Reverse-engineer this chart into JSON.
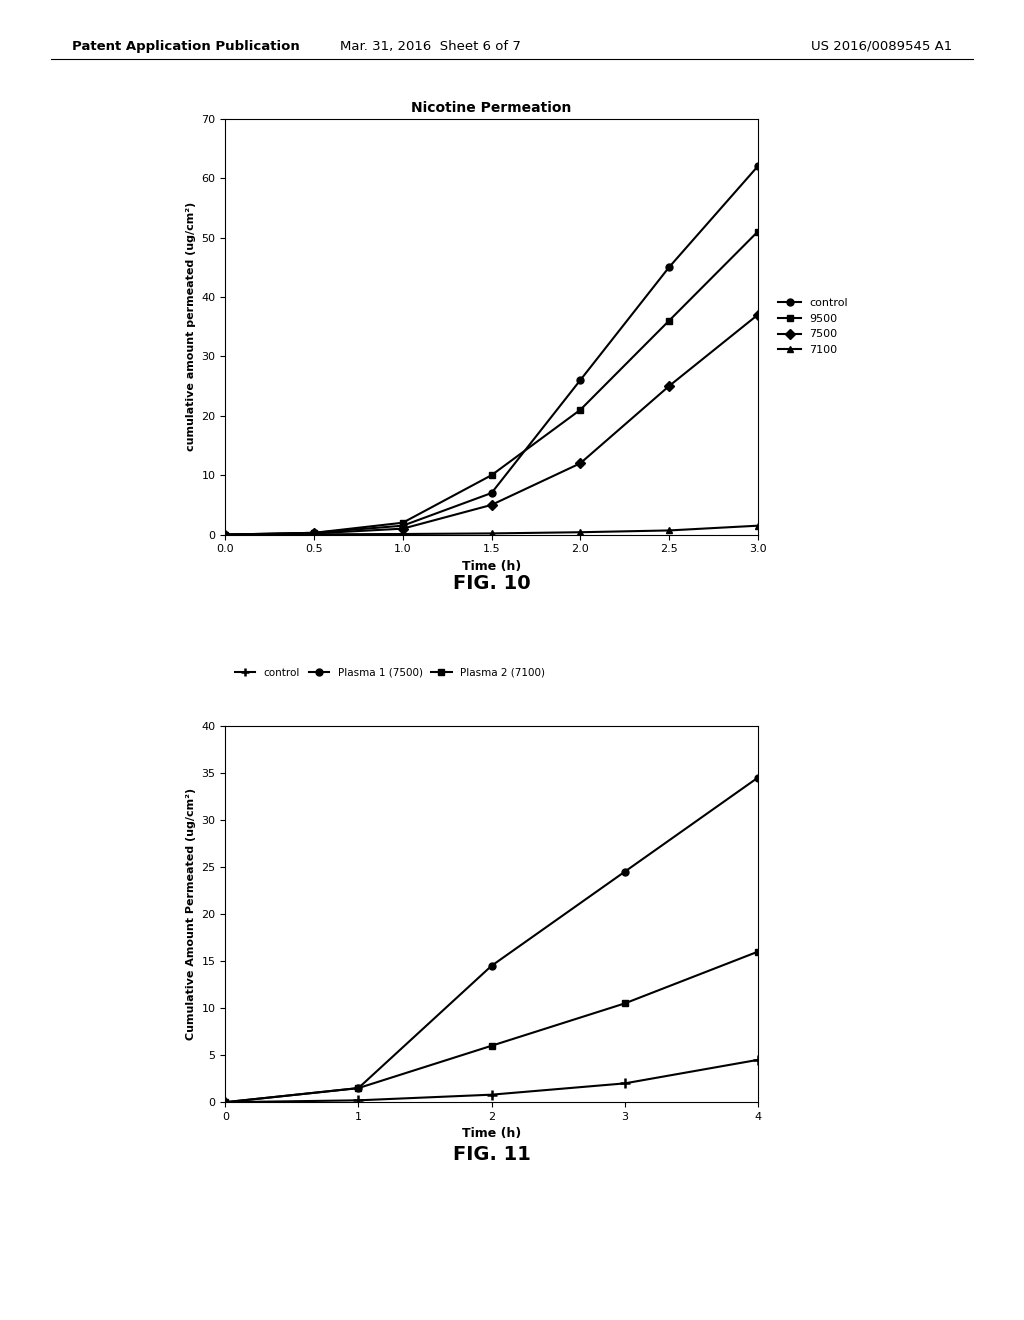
{
  "fig10": {
    "title": "Nicotine Permeation",
    "xlabel": "Time (h)",
    "ylabel": "cumulative amount permeated (ug/cm²)",
    "xlim": [
      0,
      3
    ],
    "ylim": [
      0,
      70
    ],
    "xticks": [
      0,
      0.5,
      1,
      1.5,
      2,
      2.5,
      3
    ],
    "yticks": [
      0,
      10,
      20,
      30,
      40,
      50,
      60,
      70
    ],
    "series": [
      {
        "label": "control",
        "x": [
          0,
          0.5,
          1,
          1.5,
          2,
          2.5,
          3
        ],
        "y": [
          0,
          0.3,
          1.5,
          7,
          26,
          45,
          62
        ],
        "marker": "o",
        "color": "#000000"
      },
      {
        "label": "9500",
        "x": [
          0,
          0.5,
          1,
          1.5,
          2,
          2.5,
          3
        ],
        "y": [
          0,
          0.3,
          2,
          10,
          21,
          36,
          51
        ],
        "marker": "s",
        "color": "#000000"
      },
      {
        "label": "7500",
        "x": [
          0,
          0.5,
          1,
          1.5,
          2,
          2.5,
          3
        ],
        "y": [
          0,
          0.2,
          1,
          5,
          12,
          25,
          37
        ],
        "marker": "D",
        "color": "#000000"
      },
      {
        "label": "7100",
        "x": [
          0,
          0.5,
          1,
          1.5,
          2,
          2.5,
          3
        ],
        "y": [
          0,
          0.05,
          0.1,
          0.2,
          0.4,
          0.7,
          1.5
        ],
        "marker": "^",
        "color": "#000000"
      }
    ]
  },
  "fig11": {
    "xlabel": "Time (h)",
    "ylabel": "Cumulative Amount Permeated (ug/cm²)",
    "xlim": [
      0,
      4
    ],
    "ylim": [
      0,
      40
    ],
    "xticks": [
      0,
      1,
      2,
      3,
      4
    ],
    "yticks": [
      0,
      5,
      10,
      15,
      20,
      25,
      30,
      35,
      40
    ],
    "series": [
      {
        "label": "control",
        "x": [
          0,
          1,
          2,
          3,
          4
        ],
        "y": [
          0,
          0.2,
          0.8,
          2.0,
          4.5
        ],
        "marker": "+",
        "color": "#000000"
      },
      {
        "label": "Plasma 1 (7500)",
        "x": [
          0,
          1,
          2,
          3,
          4
        ],
        "y": [
          0,
          1.5,
          14.5,
          24.5,
          34.5
        ],
        "marker": "o",
        "color": "#000000"
      },
      {
        "label": "Plasma 2 (7100)",
        "x": [
          0,
          1,
          2,
          3,
          4
        ],
        "y": [
          0,
          1.5,
          6.0,
          10.5,
          16.0
        ],
        "marker": "s",
        "color": "#000000"
      }
    ]
  },
  "header_left": "Patent Application Publication",
  "header_center": "Mar. 31, 2016  Sheet 6 of 7",
  "header_right": "US 2016/0089545 A1",
  "fig10_label": "FIG. 10",
  "fig11_label": "FIG. 11",
  "bg_color": "#ffffff",
  "text_color": "#000000"
}
